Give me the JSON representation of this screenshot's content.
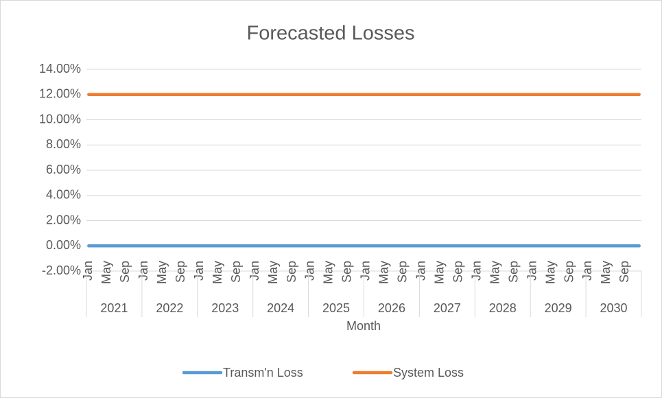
{
  "chart_data": {
    "type": "line",
    "title": "Forecasted Losses",
    "x_label": "Month",
    "categories": [
      "Jan",
      null,
      null,
      null,
      "May",
      null,
      null,
      null,
      "Sep",
      null,
      null,
      null,
      "Jan",
      null,
      null,
      null,
      "May",
      null,
      null,
      null,
      "Sep",
      null,
      null,
      null,
      "Jan",
      null,
      null,
      null,
      "May",
      null,
      null,
      null,
      "Sep",
      null,
      null,
      null,
      "Jan",
      null,
      null,
      null,
      "May",
      null,
      null,
      null,
      "Sep",
      null,
      null,
      null,
      "Jan",
      null,
      null,
      null,
      "May",
      null,
      null,
      null,
      "Sep",
      null,
      null,
      null,
      "Jan",
      null,
      null,
      null,
      "May",
      null,
      null,
      null,
      "Sep",
      null,
      null,
      null,
      "Jan",
      null,
      null,
      null,
      "May",
      null,
      null,
      null,
      "Sep",
      null,
      null,
      null,
      "Jan",
      null,
      null,
      null,
      "May",
      null,
      null,
      null,
      "Sep",
      null,
      null,
      null,
      "Jan",
      null,
      null,
      null,
      "May",
      null,
      null,
      null,
      "Sep",
      null,
      null,
      null,
      "Jan",
      null,
      null,
      null,
      "May",
      null,
      null,
      null,
      "Sep",
      null,
      null,
      null
    ],
    "groups": [
      "2021",
      "2022",
      "2023",
      "2024",
      "2025",
      "2026",
      "2027",
      "2028",
      "2029",
      "2030"
    ],
    "series": [
      {
        "name": "Transm'n Loss",
        "color": "#5b9bd5",
        "values": [
          0,
          0,
          0,
          0,
          0,
          0,
          0,
          0,
          0,
          0,
          0,
          0,
          0,
          0,
          0,
          0,
          0,
          0,
          0,
          0,
          0,
          0,
          0,
          0,
          0,
          0,
          0,
          0,
          0,
          0,
          0,
          0,
          0,
          0,
          0,
          0,
          0,
          0,
          0,
          0,
          0,
          0,
          0,
          0,
          0,
          0,
          0,
          0,
          0,
          0,
          0,
          0,
          0,
          0,
          0,
          0,
          0,
          0,
          0,
          0,
          0,
          0,
          0,
          0,
          0,
          0,
          0,
          0,
          0,
          0,
          0,
          0,
          0,
          0,
          0,
          0,
          0,
          0,
          0,
          0,
          0,
          0,
          0,
          0,
          0,
          0,
          0,
          0,
          0,
          0,
          0,
          0,
          0,
          0,
          0,
          0,
          0,
          0,
          0,
          0,
          0,
          0,
          0,
          0,
          0,
          0,
          0,
          0,
          0,
          0,
          0,
          0,
          0,
          0,
          0,
          0,
          0,
          0,
          0,
          0
        ]
      },
      {
        "name": "System Loss",
        "color": "#ed7d31",
        "values": [
          12,
          12,
          12,
          12,
          12,
          12,
          12,
          12,
          12,
          12,
          12,
          12,
          12,
          12,
          12,
          12,
          12,
          12,
          12,
          12,
          12,
          12,
          12,
          12,
          12,
          12,
          12,
          12,
          12,
          12,
          12,
          12,
          12,
          12,
          12,
          12,
          12,
          12,
          12,
          12,
          12,
          12,
          12,
          12,
          12,
          12,
          12,
          12,
          12,
          12,
          12,
          12,
          12,
          12,
          12,
          12,
          12,
          12,
          12,
          12,
          12,
          12,
          12,
          12,
          12,
          12,
          12,
          12,
          12,
          12,
          12,
          12,
          12,
          12,
          12,
          12,
          12,
          12,
          12,
          12,
          12,
          12,
          12,
          12,
          12,
          12,
          12,
          12,
          12,
          12,
          12,
          12,
          12,
          12,
          12,
          12,
          12,
          12,
          12,
          12,
          12,
          12,
          12,
          12,
          12,
          12,
          12,
          12,
          12,
          12,
          12,
          12,
          12,
          12,
          12,
          12,
          12,
          12,
          12,
          12
        ]
      }
    ],
    "ylim": [
      -2,
      14
    ],
    "yticks": [
      {
        "value": -2,
        "label": "-2.00%"
      },
      {
        "value": 0,
        "label": "0.00%"
      },
      {
        "value": 2,
        "label": "2.00%"
      },
      {
        "value": 4,
        "label": "4.00%"
      },
      {
        "value": 6,
        "label": "6.00%"
      },
      {
        "value": 8,
        "label": "8.00%"
      },
      {
        "value": 10,
        "label": "10.00%"
      },
      {
        "value": 12,
        "label": "12.00%"
      },
      {
        "value": 14,
        "label": "14.00%"
      }
    ],
    "grid": true,
    "legend": "bottom"
  }
}
